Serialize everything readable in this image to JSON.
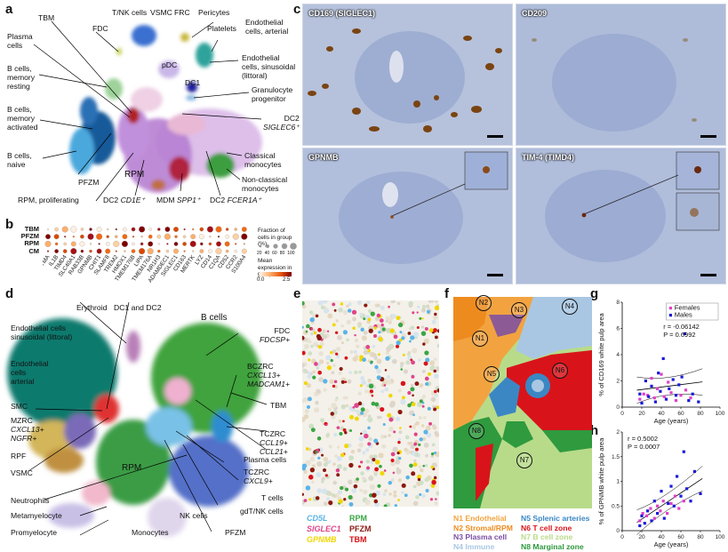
{
  "panels": {
    "a": "a",
    "b": "b",
    "c": "c",
    "d": "d",
    "e": "e",
    "f": "f",
    "g": "g",
    "h": "h"
  },
  "panel_a": {
    "labels": {
      "tbm": "TBM",
      "tnk": "T/NK cells",
      "vsmc": "VSMC",
      "frc": "FRC",
      "pericytes": "Pericytes",
      "platelets": "Platelets",
      "endo_art": "Endothelial cells, arterial",
      "fdc": "FDC",
      "plasma": "Plasma cells",
      "bmem_rest": "B cells, memory resting",
      "pdc": "pDC",
      "endo_sin": "Endothelial cells, sinusoidal (littoral)",
      "dc1": "DC1",
      "granulo": "Granulocyte progenitor",
      "bmem_act": "B cells, memory activated",
      "dc2": "DC2",
      "dc2_gene": "SIGLEC6⁺",
      "bnaive": "B cells, naive",
      "classical": "Classical monocytes",
      "pfzm": "PFZM",
      "rpm": "RPM",
      "nonclassical": "Non-classical monocytes",
      "rpm_prolif": "RPM, proliferating",
      "dc2cd1e": "DC2",
      "dc2cd1e_gene": "CD1E⁺",
      "mdm": "MDM",
      "mdm_gene": "SPP1⁺",
      "dc2fcer": "DC2",
      "dc2fcer_gene": "FCER1A⁺"
    }
  },
  "panel_b": {
    "rows": [
      "TBM",
      "PFZM",
      "RPM",
      "CM"
    ],
    "genes": [
      "PTMA",
      "IL1B",
      "TIMD4",
      "SLC40A1",
      "RAB33B",
      "GPNMB",
      "CHIT1",
      "SLAMF8",
      "TREM2",
      "HMOX1",
      "TMEM176B",
      "LIPA",
      "TMEM176A",
      "NR1H3",
      "ADAMDEC1",
      "SIGLEC1",
      "CD163",
      "MERTK",
      "LYZ",
      "CD14",
      "C1QA",
      "CD52",
      "CCR2",
      "S100A4"
    ],
    "legend_fraction_title": "Fraction of cells in group (%)",
    "legend_fraction_values": [
      "20",
      "40",
      "60",
      "80",
      "100"
    ],
    "legend_mean_title": "Mean expression in group",
    "legend_mean_ticks": [
      "0.0",
      "2.5"
    ]
  },
  "panel_c": {
    "tl": "CD169 (SIGLEC1)",
    "tr": "CD209",
    "bl": "GPNMB",
    "br": "TIM-4 (TIMD4)"
  },
  "panel_d": {
    "labels": {
      "erythroid": "Erythroid",
      "dc12": "DC1 and DC2",
      "bcells": "B cells",
      "endo_sin": "Endothelial cells sinusoidal (littoral)",
      "fdc": "FDC",
      "fdc_gene": "FDCSP+",
      "bczrc": "BCZRC",
      "bczrc_g1": "CXCL13+",
      "bczrc_g2": "MADCAM1+",
      "endo_art": "Endothelial cells arterial",
      "tbm": "TBM",
      "smc": "SMC",
      "mzrc": "MZRC",
      "mzrc_g1": "CXCL13+",
      "mzrc_g2": "NGFR+",
      "tczrc1": "TCZRC",
      "tczrc1_g1": "CCL19+",
      "tczrc1_g2": "CCL21+",
      "rpf": "RPF",
      "plasma": "Plasma cells",
      "vsmc": "VSMC",
      "rpm": "RPM",
      "tczrc2": "TCZRC",
      "tczrc2_g": "CXCL9+",
      "tcells": "T cells",
      "neutrophils": "Neutrophils",
      "gdt": "gdT/NK cells",
      "metamyelocyte": "Metamyelocyte",
      "nk": "NK cells",
      "promyelocyte": "Promyelocyte",
      "monocytes": "Monocytes",
      "pfzm": "PFZM"
    }
  },
  "panel_e": {
    "legend": [
      {
        "gene": "CD5L",
        "italic": true,
        "color": "#5ab4e8"
      },
      {
        "gene": "RPM",
        "italic": false,
        "color": "#3aa643"
      },
      {
        "gene": "SIGLEC1",
        "italic": true,
        "color": "#e0448a"
      },
      {
        "gene": "PFZM",
        "italic": false,
        "color": "#8b1a10"
      },
      {
        "gene": "GPNMB",
        "italic": true,
        "color": "#f2d600"
      },
      {
        "gene": "TBM",
        "italic": false,
        "color": "#d8141a"
      }
    ]
  },
  "panel_f": {
    "markers": [
      "N2",
      "N3",
      "N4",
      "N1",
      "N5",
      "N6",
      "N8",
      "N7"
    ],
    "legend": [
      {
        "text": "N1 Endothelial",
        "color": "#f2a340"
      },
      {
        "text": "N5 Splenic arteries",
        "color": "#3b87c4"
      },
      {
        "text": "N2 Stromal/RPM",
        "color": "#ee8b1e"
      },
      {
        "text": "N6 T cell zone",
        "color": "#d8141a"
      },
      {
        "text": "N3 Plasma cell",
        "color": "#7a4ea5"
      },
      {
        "text": "N7 B cell zone",
        "color": "#b8db8a"
      },
      {
        "text": "N4 Immune",
        "color": "#a9c7e3"
      },
      {
        "text": "N8 Marginal zone",
        "color": "#2f9a3e"
      }
    ]
  },
  "chart_data": [
    {
      "type": "scatter",
      "panel": "g",
      "ylabel": "% of CD169 white pulp area",
      "xlabel": "Age (years)",
      "xlim": [
        0,
        100
      ],
      "ylim": [
        0,
        8
      ],
      "xticks": [
        0,
        20,
        40,
        60,
        80,
        100
      ],
      "yticks": [
        0,
        2,
        4,
        6,
        8
      ],
      "legend": [
        "Females",
        "Males"
      ],
      "legend_placement": "top-right",
      "stats": {
        "r": "r = -0.06142",
        "p": "P = 0.6992"
      },
      "series": [
        {
          "name": "Females",
          "color": "#e040c8",
          "points": [
            [
              18,
              0.6
            ],
            [
              22,
              1.0
            ],
            [
              26,
              0.9
            ],
            [
              30,
              2.2
            ],
            [
              33,
              0.7
            ],
            [
              36,
              1.4
            ],
            [
              40,
              2.5
            ],
            [
              43,
              0.8
            ],
            [
              47,
              1.9
            ],
            [
              50,
              1.1
            ],
            [
              55,
              0.5
            ],
            [
              60,
              0.9
            ],
            [
              65,
              1.3
            ],
            [
              70,
              0.7
            ]
          ]
        },
        {
          "name": "Males",
          "color": "#1a1ad8",
          "points": [
            [
              18,
              1.0
            ],
            [
              20,
              0.3
            ],
            [
              24,
              2.0
            ],
            [
              27,
              0.8
            ],
            [
              30,
              1.6
            ],
            [
              34,
              0.4
            ],
            [
              37,
              2.6
            ],
            [
              39,
              1.2
            ],
            [
              42,
              3.7
            ],
            [
              45,
              0.6
            ],
            [
              48,
              1.4
            ],
            [
              50,
              6.8
            ],
            [
              52,
              2.1
            ],
            [
              55,
              0.9
            ],
            [
              58,
              1.7
            ],
            [
              61,
              2.3
            ],
            [
              64,
              5.6
            ],
            [
              68,
              0.5
            ],
            [
              72,
              1.0
            ],
            [
              78,
              0.4
            ]
          ]
        }
      ]
    },
    {
      "type": "scatter",
      "panel": "h",
      "ylabel": "% of GPNMB white pulp area",
      "xlabel": "Age (years)",
      "xlim": [
        0,
        100
      ],
      "ylim": [
        0,
        2.0
      ],
      "xticks": [
        0,
        20,
        40,
        60,
        80,
        100
      ],
      "yticks": [
        0,
        0.5,
        1.0,
        1.5,
        2.0
      ],
      "stats": {
        "r": "r = 0.5002",
        "p": "P = 0.0007"
      },
      "series": [
        {
          "name": "Females",
          "color": "#e040c8",
          "points": [
            [
              18,
              0.2
            ],
            [
              21,
              0.35
            ],
            [
              25,
              0.3
            ],
            [
              29,
              0.45
            ],
            [
              33,
              0.25
            ],
            [
              36,
              0.5
            ],
            [
              39,
              0.4
            ],
            [
              42,
              0.6
            ],
            [
              46,
              0.35
            ],
            [
              50,
              0.55
            ],
            [
              54,
              0.7
            ],
            [
              58,
              0.45
            ],
            [
              63,
              0.6
            ]
          ]
        },
        {
          "name": "Males",
          "color": "#1a1ad8",
          "points": [
            [
              18,
              0.1
            ],
            [
              20,
              0.3
            ],
            [
              23,
              0.15
            ],
            [
              26,
              0.4
            ],
            [
              30,
              0.2
            ],
            [
              33,
              0.6
            ],
            [
              36,
              0.35
            ],
            [
              40,
              0.8
            ],
            [
              43,
              0.25
            ],
            [
              47,
              0.55
            ],
            [
              50,
              0.9
            ],
            [
              53,
              0.5
            ],
            [
              56,
              1.1
            ],
            [
              60,
              0.7
            ],
            [
              63,
              1.6
            ],
            [
              66,
              0.85
            ],
            [
              70,
              0.6
            ],
            [
              74,
              1.2
            ],
            [
              80,
              0.75
            ]
          ]
        }
      ]
    }
  ]
}
